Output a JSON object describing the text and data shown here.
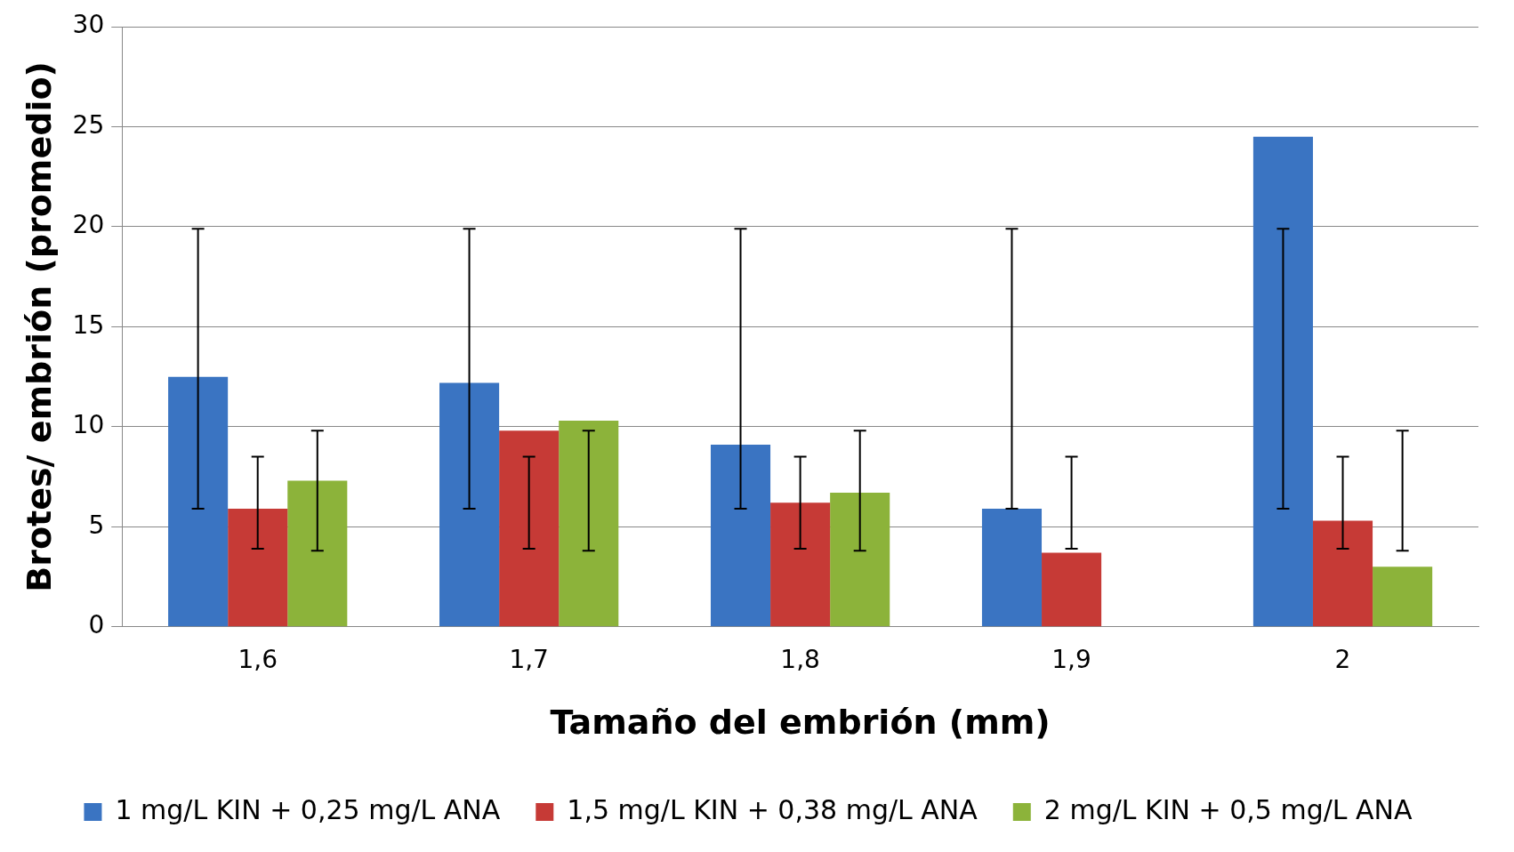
{
  "chart_data": {
    "type": "bar",
    "xlabel": "Tamaño del embrión (mm)",
    "ylabel": "Brotes/ embrión (promedio)",
    "categories": [
      "1,6",
      "1,7",
      "1,8",
      "1,9",
      "2"
    ],
    "series": [
      {
        "name": "1 mg/L KIN + 0,25 mg/L ANA",
        "color": "#3a74c2",
        "values": [
          12.5,
          12.2,
          9.1,
          5.9,
          24.5
        ],
        "errors": [
          [
            5.9,
            19.9
          ],
          [
            5.9,
            19.9
          ],
          [
            5.9,
            19.9
          ],
          [
            5.9,
            19.9
          ],
          [
            5.9,
            19.9
          ]
        ]
      },
      {
        "name": "1,5 mg/L KIN + 0,38 mg/L ANA",
        "color": "#c63a36",
        "values": [
          5.9,
          9.8,
          6.2,
          3.7,
          5.3
        ],
        "errors": [
          [
            3.9,
            8.5
          ],
          [
            3.9,
            8.5
          ],
          [
            3.9,
            8.5
          ],
          [
            3.9,
            8.5
          ],
          [
            3.9,
            8.5
          ]
        ]
      },
      {
        "name": "2 mg/L KIN + 0,5 mg/L ANA",
        "color": "#8cb33a",
        "values": [
          7.3,
          10.3,
          6.7,
          null,
          3.0
        ],
        "errors": [
          [
            3.8,
            9.8
          ],
          [
            3.8,
            9.8
          ],
          [
            3.8,
            9.8
          ],
          null,
          [
            3.8,
            9.8
          ]
        ]
      }
    ],
    "ylim": [
      0,
      30
    ],
    "yticks": [
      0,
      5,
      10,
      15,
      20,
      25,
      30
    ],
    "grid": "y",
    "legend": "bottom"
  }
}
